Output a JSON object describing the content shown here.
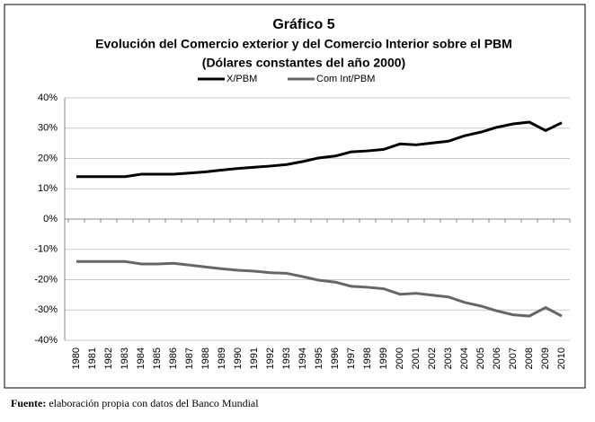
{
  "chart_data": {
    "type": "line",
    "title": "Gráfico 5",
    "subtitle": [
      "Evolución del Comercio exterior y del Comercio Interior  sobre el PBM",
      "(Dólares constantes del año 2000)"
    ],
    "categories": [
      "1980",
      "1981",
      "1982",
      "1983",
      "1984",
      "1985",
      "1986",
      "1987",
      "1988",
      "1989",
      "1990",
      "1991",
      "1992",
      "1993",
      "1994",
      "1995",
      "1996",
      "1997",
      "1998",
      "1999",
      "2000",
      "2001",
      "2002",
      "2003",
      "2004",
      "2005",
      "2006",
      "2007",
      "2008",
      "2009",
      "2010"
    ],
    "series": [
      {
        "name": "X/PBM",
        "color": "#000000",
        "values": [
          14,
          14,
          14,
          14,
          14.8,
          14.8,
          14.8,
          15.2,
          15.6,
          16.2,
          16.7,
          17.1,
          17.5,
          18,
          19,
          20.2,
          20.8,
          22.2,
          22.5,
          23,
          24.8,
          24.5,
          25.1,
          25.7,
          27.5,
          28.7,
          30.3,
          31.4,
          32,
          29.2,
          31.8
        ]
      },
      {
        "name": "Com Int/PBM",
        "color": "#666666",
        "values": [
          -14,
          -14,
          -14,
          -14,
          -14.8,
          -14.8,
          -14.6,
          -15.2,
          -15.8,
          -16.4,
          -16.9,
          -17.2,
          -17.7,
          -17.9,
          -19,
          -20.2,
          -20.8,
          -22.2,
          -22.5,
          -23,
          -24.8,
          -24.5,
          -25.1,
          -25.7,
          -27.5,
          -28.7,
          -30.3,
          -31.6,
          -32,
          -29.2,
          -32
        ]
      }
    ],
    "ylim": [
      -40,
      40
    ],
    "yticks": [
      {
        "value": -40,
        "label": "-40%"
      },
      {
        "value": -30,
        "label": "-30%"
      },
      {
        "value": -20,
        "label": "-20%"
      },
      {
        "value": -10,
        "label": "-10%"
      },
      {
        "value": 0,
        "label": "0%"
      },
      {
        "value": 10,
        "label": "10%"
      },
      {
        "value": 20,
        "label": "20%"
      },
      {
        "value": 30,
        "label": "30%"
      },
      {
        "value": 40,
        "label": "40%"
      }
    ],
    "grid": true
  },
  "footnote": {
    "label": "Fuente:",
    "text": " elaboración propia con datos del Banco Mundial"
  }
}
